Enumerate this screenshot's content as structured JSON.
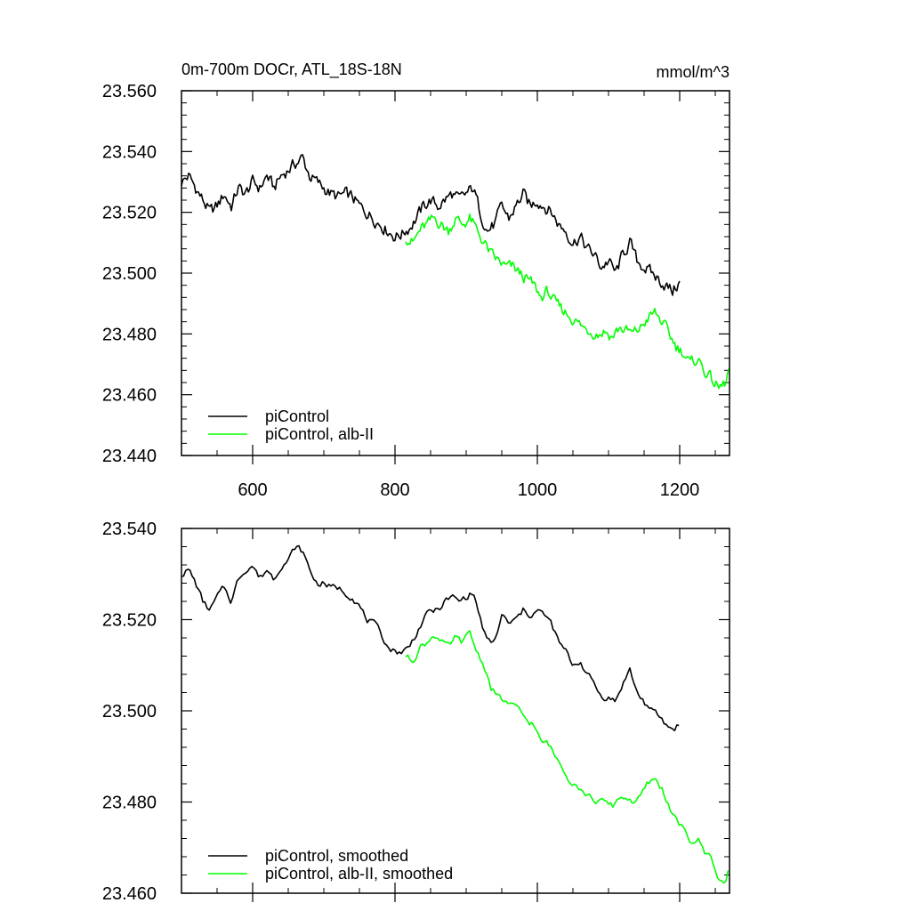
{
  "chart_data": [
    {
      "type": "line",
      "title": "0m-700m DOCr, ATL_18S-18N",
      "units": "mmol/m^3",
      "xlim": [
        500,
        1270
      ],
      "ylim": [
        23.44,
        23.56
      ],
      "x_ticks": [
        600,
        800,
        1000,
        1200
      ],
      "x_tick_labels": [
        "600",
        "800",
        "1000",
        "1200"
      ],
      "y_ticks": [
        23.44,
        23.46,
        23.48,
        23.5,
        23.52,
        23.54,
        23.56
      ],
      "y_tick_labels": [
        "23.440",
        "23.460",
        "23.480",
        "23.500",
        "23.520",
        "23.540",
        "23.560"
      ],
      "legend_position": "bottom-left",
      "grid": false,
      "series": [
        {
          "name": "piControl",
          "color": "#000000",
          "x": [
            500,
            510,
            520,
            530,
            540,
            550,
            560,
            570,
            580,
            590,
            600,
            610,
            620,
            630,
            640,
            650,
            660,
            670,
            680,
            690,
            700,
            710,
            720,
            730,
            740,
            750,
            760,
            770,
            780,
            790,
            800,
            810,
            820,
            830,
            840,
            850,
            860,
            870,
            880,
            890,
            900,
            910,
            920,
            930,
            940,
            950,
            960,
            970,
            980,
            990,
            1000,
            1010,
            1020,
            1030,
            1040,
            1050,
            1060,
            1070,
            1080,
            1090,
            1100,
            1110,
            1120,
            1130,
            1140,
            1150,
            1160,
            1170,
            1180,
            1190,
            1200
          ],
          "y": [
            23.53,
            23.532,
            23.528,
            23.524,
            23.52,
            23.522,
            23.526,
            23.522,
            23.528,
            23.526,
            23.53,
            23.528,
            23.532,
            23.528,
            23.532,
            23.534,
            23.536,
            23.538,
            23.532,
            23.53,
            23.528,
            23.526,
            23.525,
            23.526,
            23.525,
            23.522,
            23.52,
            23.518,
            23.516,
            23.514,
            23.512,
            23.513,
            23.515,
            23.518,
            23.522,
            23.524,
            23.522,
            23.524,
            23.526,
            23.524,
            23.526,
            23.528,
            23.52,
            23.514,
            23.516,
            23.522,
            23.518,
            23.522,
            23.526,
            23.522,
            23.524,
            23.522,
            23.52,
            23.516,
            23.514,
            23.51,
            23.512,
            23.508,
            23.506,
            23.502,
            23.504,
            23.5,
            23.506,
            23.51,
            23.504,
            23.502,
            23.5,
            23.498,
            23.496,
            23.494,
            23.497
          ]
        },
        {
          "name": "piControl, alb-II",
          "color": "#00ff00",
          "x": [
            815,
            825,
            835,
            845,
            855,
            865,
            875,
            885,
            895,
            905,
            915,
            925,
            935,
            945,
            955,
            965,
            975,
            985,
            995,
            1005,
            1015,
            1025,
            1035,
            1045,
            1055,
            1065,
            1075,
            1085,
            1095,
            1105,
            1115,
            1125,
            1135,
            1145,
            1155,
            1165,
            1175,
            1185,
            1195,
            1205,
            1215,
            1225,
            1235,
            1245,
            1255,
            1265,
            1270
          ],
          "y": [
            23.512,
            23.51,
            23.514,
            23.516,
            23.518,
            23.516,
            23.514,
            23.518,
            23.516,
            23.518,
            23.514,
            23.51,
            23.506,
            23.504,
            23.502,
            23.502,
            23.5,
            23.498,
            23.496,
            23.492,
            23.494,
            23.49,
            23.488,
            23.486,
            23.484,
            23.482,
            23.481,
            23.48,
            23.481,
            23.479,
            23.482,
            23.481,
            23.48,
            23.482,
            23.485,
            23.487,
            23.484,
            23.48,
            23.476,
            23.474,
            23.47,
            23.472,
            23.468,
            23.465,
            23.462,
            23.464,
            23.469
          ]
        }
      ]
    },
    {
      "type": "line",
      "xlim": [
        500,
        1270
      ],
      "ylim": [
        23.46,
        23.54
      ],
      "x_ticks": [
        600,
        800,
        1000,
        1200
      ],
      "x_tick_labels": [],
      "y_ticks": [
        23.46,
        23.48,
        23.5,
        23.52,
        23.54
      ],
      "y_tick_labels": [
        "23.460",
        "23.480",
        "23.500",
        "23.520",
        "23.540"
      ],
      "legend_position": "bottom-left",
      "grid": false,
      "series": [
        {
          "name": "piControl, smoothed",
          "color": "#000000",
          "x": [
            500,
            510,
            520,
            530,
            540,
            550,
            560,
            570,
            580,
            590,
            600,
            610,
            620,
            630,
            640,
            650,
            660,
            670,
            680,
            690,
            700,
            710,
            720,
            730,
            740,
            750,
            760,
            770,
            780,
            790,
            800,
            810,
            820,
            830,
            840,
            850,
            860,
            870,
            880,
            890,
            900,
            910,
            920,
            930,
            940,
            950,
            960,
            970,
            980,
            990,
            1000,
            1010,
            1020,
            1030,
            1040,
            1050,
            1060,
            1070,
            1080,
            1090,
            1100,
            1110,
            1120,
            1130,
            1140,
            1150,
            1160,
            1170,
            1180,
            1190,
            1200
          ],
          "y": [
            23.53,
            23.531,
            23.528,
            23.524,
            23.522,
            23.525,
            23.527,
            23.524,
            23.529,
            23.531,
            23.532,
            23.529,
            23.531,
            23.529,
            23.532,
            23.533,
            23.536,
            23.535,
            23.531,
            23.528,
            23.528,
            23.527,
            23.527,
            23.526,
            23.525,
            23.523,
            23.52,
            23.519,
            23.517,
            23.514,
            23.513,
            23.513,
            23.514,
            23.517,
            23.52,
            23.522,
            23.522,
            23.524,
            23.525,
            23.524,
            23.525,
            23.526,
            23.52,
            23.515,
            23.515,
            23.521,
            23.519,
            23.52,
            23.522,
            23.521,
            23.522,
            23.521,
            23.519,
            23.515,
            23.513,
            23.51,
            23.511,
            23.508,
            23.506,
            23.503,
            23.503,
            23.502,
            23.506,
            23.509,
            23.504,
            23.502,
            23.5,
            23.499,
            23.497,
            23.496,
            23.497
          ]
        },
        {
          "name": "piControl, alb-II, smoothed",
          "color": "#00ff00",
          "x": [
            815,
            825,
            835,
            845,
            855,
            865,
            875,
            885,
            895,
            905,
            915,
            925,
            935,
            945,
            955,
            965,
            975,
            985,
            995,
            1005,
            1015,
            1025,
            1035,
            1045,
            1055,
            1065,
            1075,
            1085,
            1095,
            1105,
            1115,
            1125,
            1135,
            1145,
            1155,
            1165,
            1175,
            1185,
            1195,
            1205,
            1215,
            1225,
            1235,
            1245,
            1255,
            1265,
            1270
          ],
          "y": [
            23.512,
            23.511,
            23.514,
            23.515,
            23.517,
            23.515,
            23.514,
            23.516,
            23.515,
            23.517,
            23.513,
            23.51,
            23.505,
            23.503,
            23.502,
            23.501,
            23.5,
            23.498,
            23.497,
            23.493,
            23.493,
            23.49,
            23.488,
            23.485,
            23.484,
            23.482,
            23.481,
            23.48,
            23.48,
            23.479,
            23.481,
            23.481,
            23.48,
            23.481,
            23.484,
            23.485,
            23.483,
            23.479,
            23.476,
            23.474,
            23.471,
            23.472,
            23.469,
            23.468,
            23.463,
            23.462,
            23.466
          ]
        }
      ]
    }
  ]
}
